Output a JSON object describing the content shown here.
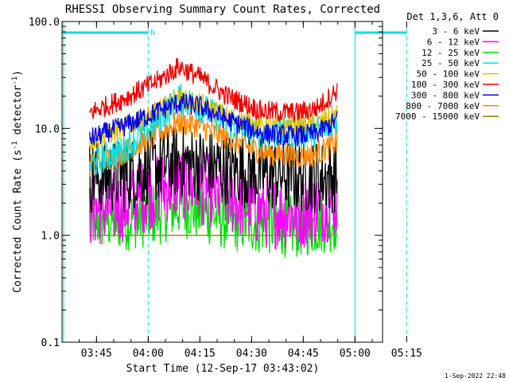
{
  "chart_data": {
    "type": "line",
    "title": "RHESSI Observing Summary Count Rates, Corrected",
    "xlabel": "Start Time (12-Sep-17 03:43:02)",
    "ylabel_main": "Corrected Count Rate (s",
    "ylabel_sup1": "-1",
    "ylabel_mid": " detector",
    "ylabel_sup2": "-1",
    "ylabel_end": ")",
    "yscale": "log",
    "ylim": [
      0.1,
      100.0
    ],
    "xlim_min": [
      -8,
      85
    ],
    "x_ticks": [
      {
        "t": 2,
        "label": "03:45"
      },
      {
        "t": 17,
        "label": "04:00"
      },
      {
        "t": 32,
        "label": "04:15"
      },
      {
        "t": 47,
        "label": "04:30"
      },
      {
        "t": 62,
        "label": "04:45"
      },
      {
        "t": 77,
        "label": "05:00"
      },
      {
        "t": 92,
        "label": "05:15"
      }
    ],
    "y_ticks": [
      {
        "v": 100.0,
        "label": "100.0"
      },
      {
        "v": 10.0,
        "label": "10.0"
      },
      {
        "v": 1.0,
        "label": "1.0"
      },
      {
        "v": 0.1,
        "label": "0.1"
      }
    ],
    "legend_header": "Det 1,3,6, Att 0",
    "legend_position": "outside-right",
    "night_marker_label": "N",
    "timestamp": "1-Sep-2022 22:48",
    "series": [
      {
        "name": "3 - 6 keV",
        "color": "#000000",
        "x": [
          0,
          10,
          20,
          26,
          32,
          40,
          50,
          60,
          66,
          72
        ],
        "y": [
          3.5,
          3.6,
          4.5,
          4.9,
          4.6,
          4.2,
          3.8,
          3.6,
          3.5,
          3.6
        ],
        "noise": 0.35
      },
      {
        "name": "6 - 12 keV",
        "color": "#ff00ff",
        "x": [
          0,
          10,
          20,
          26,
          32,
          40,
          50,
          60,
          66,
          72
        ],
        "y": [
          1.7,
          1.9,
          2.7,
          3.1,
          2.8,
          2.3,
          1.7,
          1.6,
          1.8,
          2.1
        ],
        "noise": 0.35
      },
      {
        "name": "12 - 25 keV",
        "color": "#00dd00",
        "x": [
          0,
          10,
          20,
          26,
          32,
          40,
          50,
          60,
          66,
          72
        ],
        "y": [
          1.4,
          1.4,
          1.6,
          1.9,
          1.7,
          1.4,
          1.3,
          1.2,
          1.3,
          1.4
        ],
        "noise": 0.3
      },
      {
        "name": "25 - 50 keV",
        "color": "#00e0e0",
        "x": [
          0,
          10,
          20,
          26,
          32,
          40,
          50,
          60,
          66,
          72
        ],
        "y": [
          4.5,
          6.5,
          12.0,
          19.0,
          16.0,
          11.0,
          9.0,
          9.0,
          9.5,
          12.0
        ],
        "noise": 0.15
      },
      {
        "name": "50 - 100 keV",
        "color": "#e0c000",
        "x": [
          0,
          10,
          20,
          26,
          32,
          40,
          50,
          60,
          66,
          72
        ],
        "y": [
          7.5,
          10.0,
          15.0,
          19.0,
          17.0,
          13.0,
          10.5,
          10.5,
          11.0,
          14.0
        ],
        "noise": 0.1
      },
      {
        "name": "100 - 300 keV",
        "color": "#ee0000",
        "x": [
          0,
          10,
          20,
          26,
          32,
          40,
          50,
          60,
          66,
          72
        ],
        "y": [
          14.0,
          19.0,
          28.0,
          38.0,
          30.0,
          20.0,
          14.5,
          14.0,
          15.5,
          23.0
        ],
        "noise": 0.1
      },
      {
        "name": "300 - 800 keV",
        "color": "#0000ee",
        "x": [
          0,
          10,
          20,
          26,
          32,
          40,
          50,
          60,
          66,
          72
        ],
        "y": [
          8.0,
          10.5,
          14.5,
          17.5,
          16.0,
          12.0,
          9.0,
          8.5,
          9.0,
          12.0
        ],
        "noise": 0.1
      },
      {
        "name": "800 - 7000 keV",
        "color": "#ff8800",
        "x": [
          0,
          10,
          20,
          26,
          32,
          40,
          50,
          60,
          66,
          72
        ],
        "y": [
          4.5,
          6.0,
          9.0,
          11.5,
          10.5,
          8.0,
          6.0,
          5.5,
          5.8,
          7.5
        ],
        "noise": 0.12
      },
      {
        "name": "7000 - 15000 keV",
        "color": "#888800",
        "x": [
          0,
          10,
          20,
          26,
          32,
          40,
          50,
          60,
          66,
          72
        ],
        "y": [
          1.0,
          1.0,
          1.0,
          1.0,
          1.0,
          1.0,
          1.0,
          1.0,
          1.0,
          1.0
        ],
        "noise": 0.0
      }
    ],
    "data_start_min": 0,
    "data_end_min": 72,
    "night_intervals": [
      [
        -8,
        17
      ],
      [
        77,
        92
      ]
    ],
    "colors": {
      "axes": "#000000",
      "night": "#00e0e0"
    }
  }
}
